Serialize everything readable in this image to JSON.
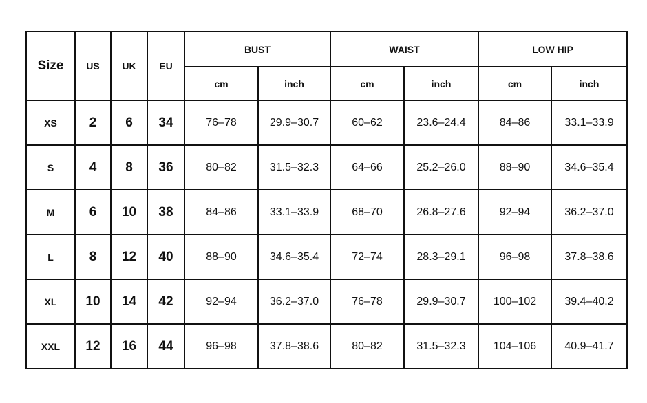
{
  "table": {
    "headers": {
      "size": "Size",
      "us": "US",
      "uk": "UK",
      "eu": "EU",
      "groups": [
        "BUST",
        "WAIST",
        "LOW HIP"
      ],
      "units": [
        "cm",
        "inch",
        "cm",
        "inch",
        "cm",
        "inch"
      ]
    },
    "rows": [
      [
        "XS",
        "2",
        "6",
        "34",
        "76–78",
        "29.9–30.7",
        "60–62",
        "23.6–24.4",
        "84–86",
        "33.1–33.9"
      ],
      [
        "S",
        "4",
        "8",
        "36",
        "80–82",
        "31.5–32.3",
        "64–66",
        "25.2–26.0",
        "88–90",
        "34.6–35.4"
      ],
      [
        "M",
        "6",
        "10",
        "38",
        "84–86",
        "33.1–33.9",
        "68–70",
        "26.8–27.6",
        "92–94",
        "36.2–37.0"
      ],
      [
        "L",
        "8",
        "12",
        "40",
        "88–90",
        "34.6–35.4",
        "72–74",
        "28.3–29.1",
        "96–98",
        "37.8–38.6"
      ],
      [
        "XL",
        "10",
        "14",
        "42",
        "92–94",
        "36.2–37.0",
        "76–78",
        "29.9–30.7",
        "100–102",
        "39.4–40.2"
      ],
      [
        "XXL",
        "12",
        "16",
        "44",
        "96–98",
        "37.8–38.6",
        "80–82",
        "31.5–32.3",
        "104–106",
        "40.9–41.7"
      ]
    ]
  }
}
